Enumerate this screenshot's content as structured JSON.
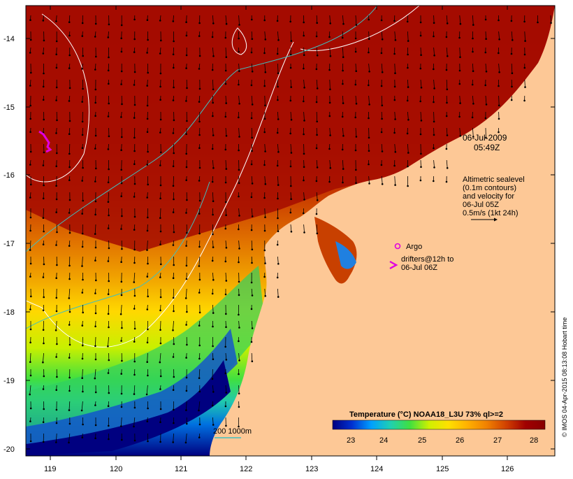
{
  "timestamp": {
    "date": "06-Jul-2009",
    "time": "05:49Z"
  },
  "altimetry_note": [
    "Altimetric sealevel",
    "(0.1m contours)",
    "and velocity for",
    "06-Jul 05Z",
    "0.5m/s (1kt 24h)"
  ],
  "legend": {
    "argo_label": "Argo",
    "drifters_line1": "drifters@12h to",
    "drifters_line2": "06-Jul 06Z",
    "argo_color": "#e000e0"
  },
  "depth_legend": {
    "label": "200  1000m",
    "color": "#40c0c0"
  },
  "colorbar": {
    "title": "Temperature (°C) NOAA18_L3U 73% ql>=2",
    "ticks": [
      "23",
      "24",
      "25",
      "26",
      "27",
      "28"
    ],
    "colors": [
      "#000080",
      "#0030d0",
      "#00a0ff",
      "#20d0b0",
      "#40e040",
      "#d0f000",
      "#ffe000",
      "#ffb000",
      "#f08000",
      "#d04000",
      "#a00000",
      "#880000"
    ]
  },
  "axes": {
    "lon_ticks": [
      "119",
      "120",
      "121",
      "122",
      "123",
      "124",
      "125",
      "126"
    ],
    "lat_ticks": [
      "-14",
      "-15",
      "-16",
      "-17",
      "-18",
      "-19",
      "-20"
    ]
  },
  "credit": "© IMOS 04-Apr-2015 08:13:08 Hobart time",
  "colors": {
    "land": "#fdc896",
    "warm_sea": "#a01000",
    "contour_white": "#ffffff",
    "contour_cyan": "#40c0c0"
  }
}
